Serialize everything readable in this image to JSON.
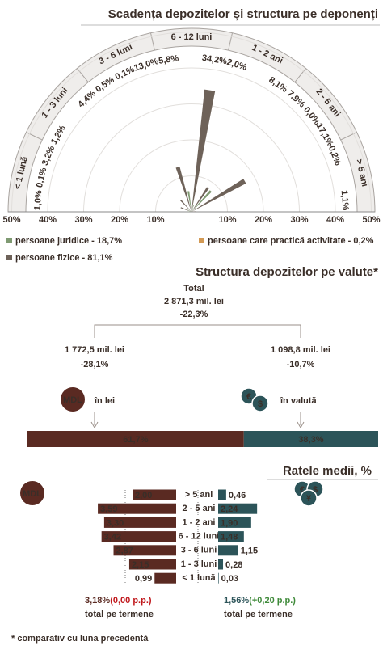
{
  "chart_data": [
    {
      "type": "polar",
      "title": "Scadența depozitelor și structura pe deponenți",
      "categories": [
        "< 1 lună",
        "1 - 3 luni",
        "3 - 6 luni",
        "6 - 12 luni",
        "1 - 2 ani",
        "2 - 5 ani",
        "> 5 ani"
      ],
      "series": [
        {
          "name": "persoane juridice - 18,7%",
          "color": "#7f9a72",
          "values": [
            1.0,
            1.2,
            0.5,
            5.8,
            2.0,
            7.9,
            0.2
          ],
          "value_labels": [
            "1,0%",
            "1,2%",
            "0,5%",
            "5,8%",
            "2,0%",
            "7,9%",
            "0,2%"
          ]
        },
        {
          "name": "persoane care practică activitate - 0,2%",
          "color": "#d39a55",
          "values": [
            0.1,
            null,
            0.1,
            null,
            null,
            0.0,
            null
          ],
          "value_labels": [
            "0,1%",
            null,
            "0,1%",
            null,
            null,
            "0,0%",
            null
          ]
        },
        {
          "name": "persoane fizice - 81,1%",
          "color": "#6e6259",
          "values": [
            3.2,
            4.4,
            13.0,
            34.2,
            8.1,
            17.1,
            1.1
          ],
          "value_labels": [
            "3,2%",
            "4,4%",
            "13,0%",
            "34,2%",
            "8,1%",
            "17,1%",
            "1,1%"
          ]
        }
      ],
      "rlim": [
        0,
        50
      ],
      "rticks": [
        {
          "value": 10,
          "label": "10%"
        },
        {
          "value": 20,
          "label": "20%"
        },
        {
          "value": 30,
          "label": "30%"
        },
        {
          "value": 40,
          "label": "40%"
        },
        {
          "value": 50,
          "label": "50%"
        }
      ]
    },
    {
      "type": "stacked-bar",
      "title": "Structura depozitelor pe valute*",
      "total_label": "Total",
      "total_value": "2 871,3 mil. lei",
      "total_change": "-22,3%",
      "xlim": [
        0,
        100
      ],
      "series": [
        {
          "name": "în lei",
          "color": "#5a2a22",
          "values": [
            61.7
          ],
          "value_labels": [
            "61,7%"
          ],
          "amount": "1 772,5 mil. lei",
          "change": "-28,1%",
          "icon": [
            "MDL"
          ]
        },
        {
          "name": "în valută",
          "color": "#2c5459",
          "values": [
            38.3
          ],
          "value_labels": [
            "38,3%"
          ],
          "amount": "1 098,8 mil. lei",
          "change": "-10,7%",
          "icon": [
            "€",
            "$"
          ]
        }
      ]
    },
    {
      "type": "diverging-bar",
      "title": "Ratele medii, %",
      "categories": [
        "> 5 ani",
        "2 - 5 ani",
        "1 - 2 ani",
        "6 - 12 luni",
        "3 - 6 luni",
        "1 - 3 luni",
        "< 1 lună"
      ],
      "series": [
        {
          "color": "#5a2a22",
          "values": [
            2.0,
            3.59,
            3.3,
            3.42,
            2.87,
            2.15,
            0.99
          ],
          "value_labels": [
            "2,00",
            "3,59",
            "3,30",
            "3,42",
            "2,87",
            "2,15",
            "0,99"
          ],
          "icon": [
            "MDL"
          ],
          "total": "3,18%",
          "total_change": "(0,00 p.p.)",
          "total_label": "total pe termene"
        },
        {
          "color": "#2c5459",
          "values": [
            0.46,
            2.24,
            1.9,
            1.48,
            1.15,
            0.28,
            0.03
          ],
          "value_labels": [
            "0,46",
            "2,24",
            "1,90",
            "1,48",
            "1,15",
            "0,28",
            "0,03"
          ],
          "icon": [
            "€",
            "$",
            "¥"
          ],
          "total": "1,56%",
          "total_change": "(+0,20 p.p.)",
          "total_label": "total pe termene"
        }
      ],
      "footnote": "* comparativ cu luna precedentă"
    }
  ]
}
